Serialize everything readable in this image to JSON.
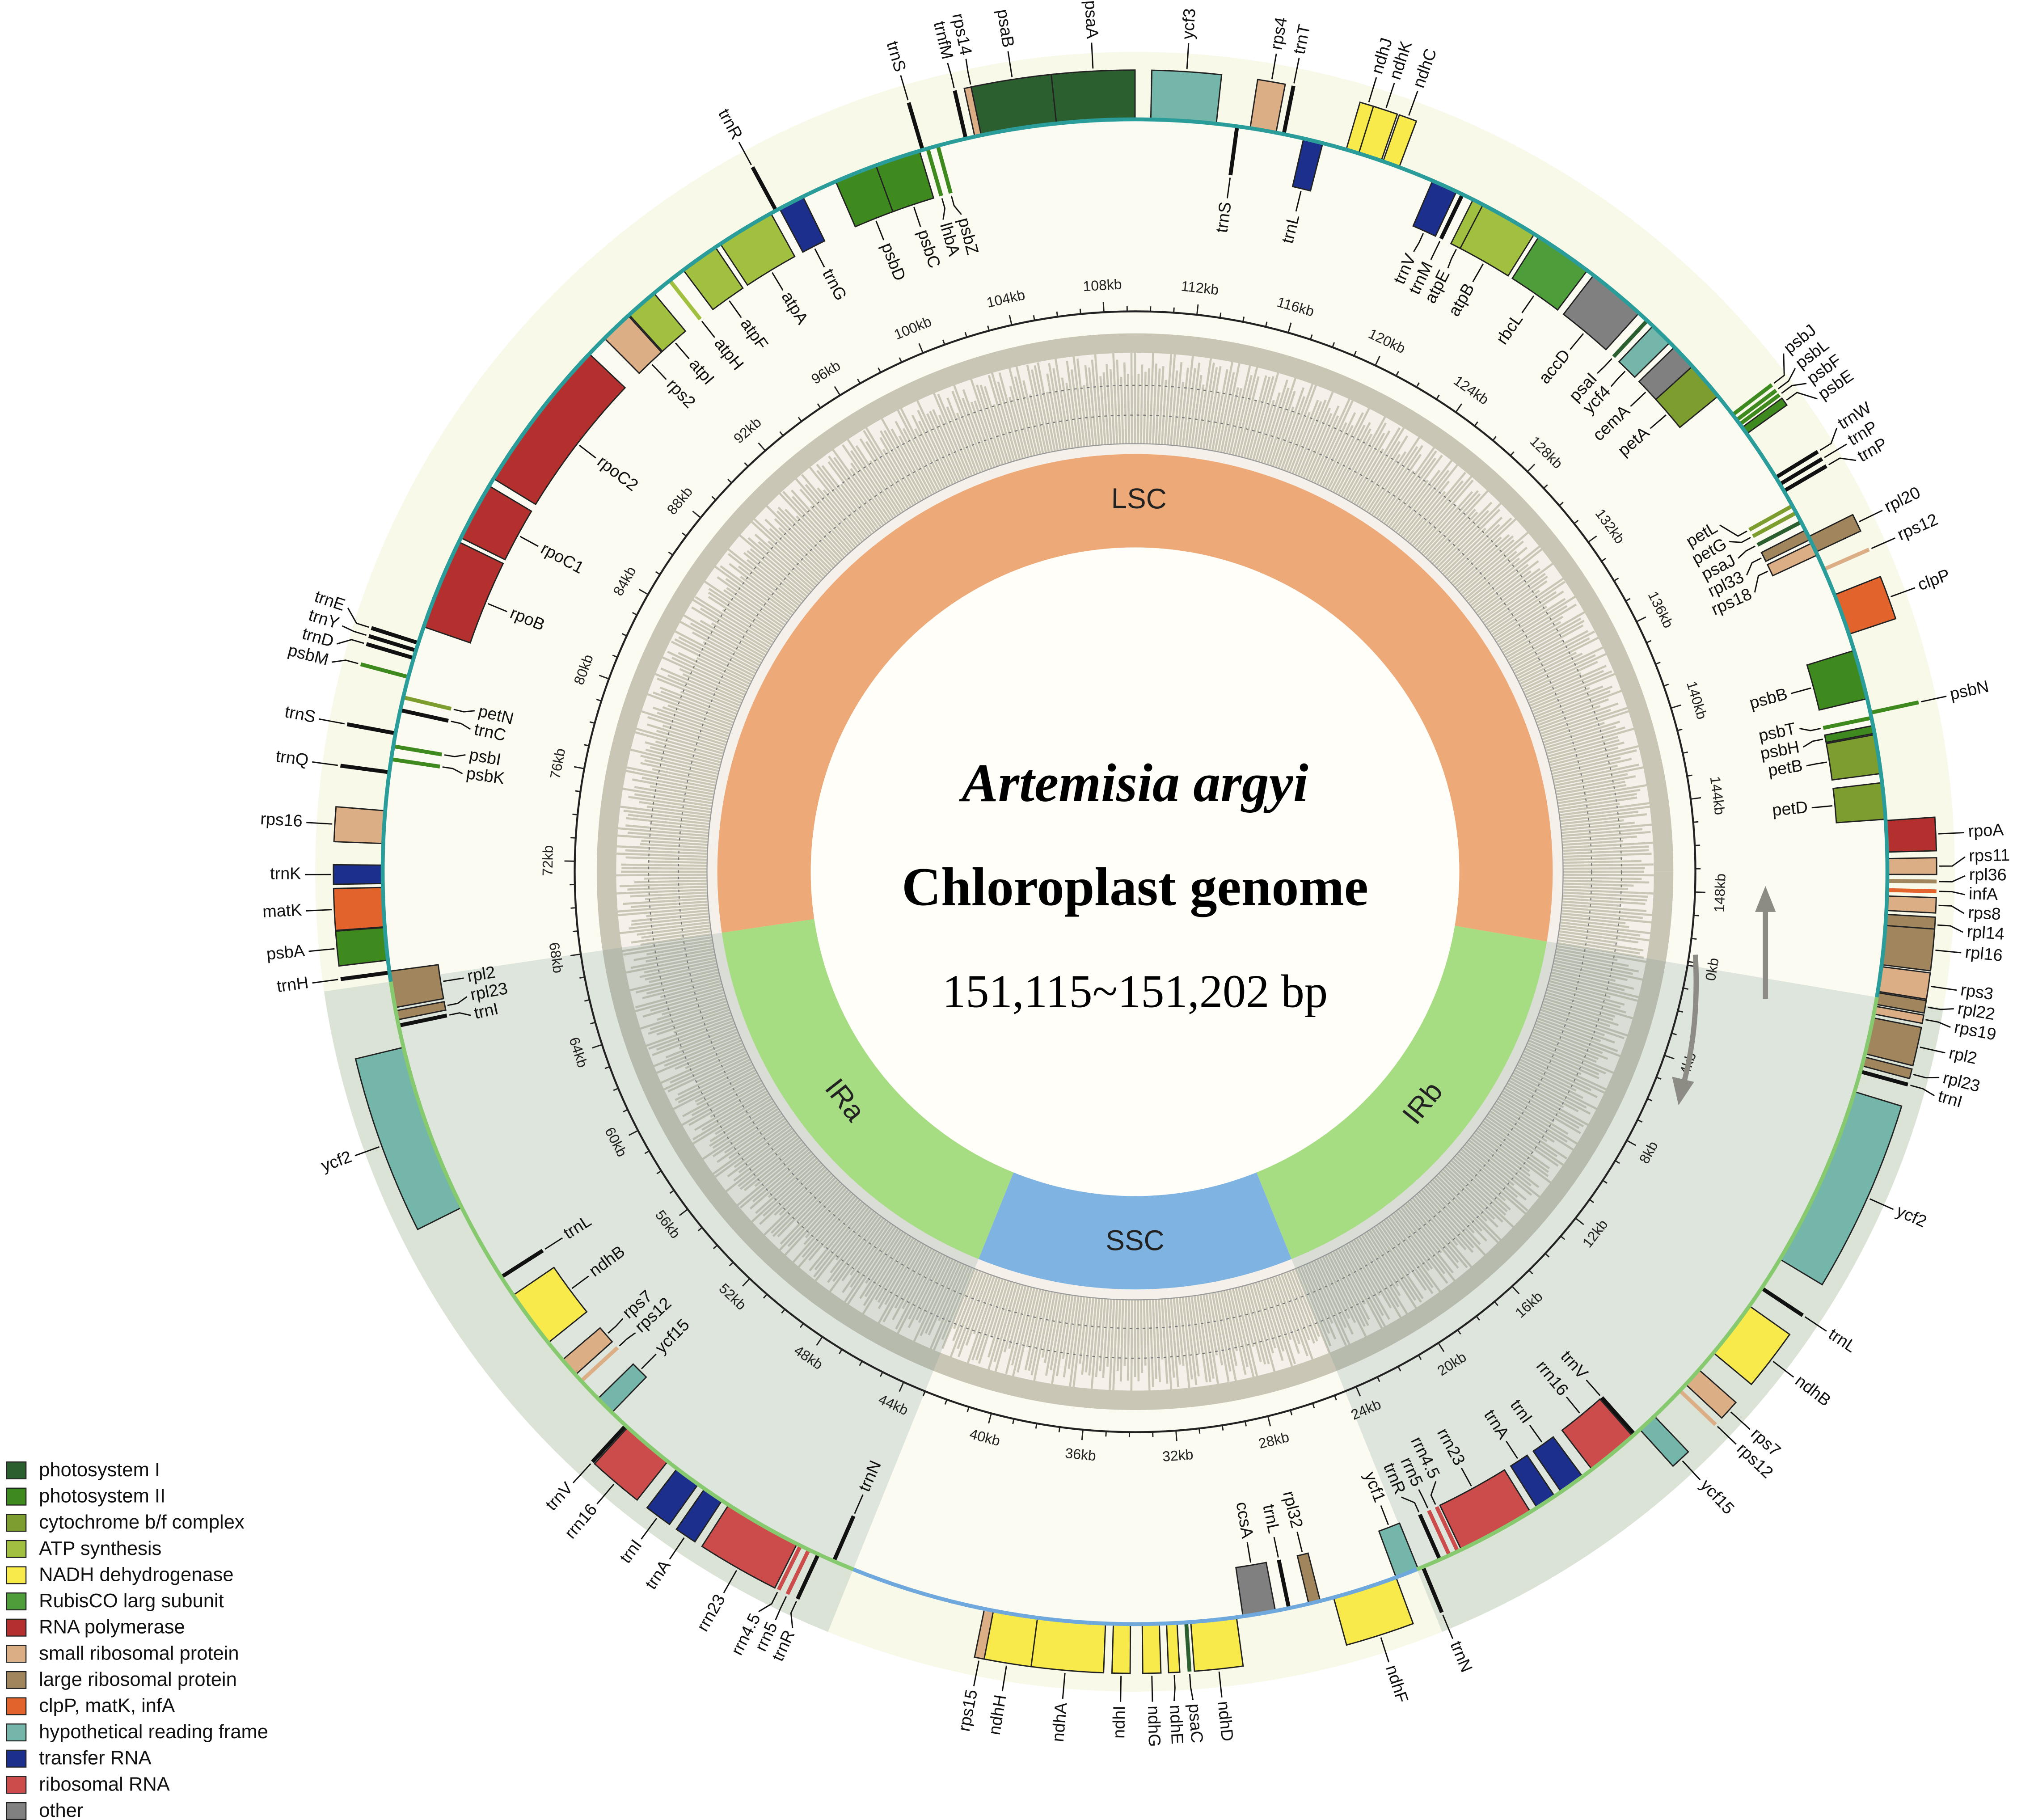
{
  "title": {
    "species": "Artemisia argyi",
    "subtitle": "Chloroplast genome",
    "size": "151,115~151,202 bp"
  },
  "regions": [
    "LSC",
    "IRb",
    "SSC",
    "IRa"
  ],
  "kb_ticks": [
    "0kb",
    "4kb",
    "8kb",
    "12kb",
    "16kb",
    "20kb",
    "24kb",
    "28kb",
    "32kb",
    "36kb",
    "40kb",
    "44kb",
    "48kb",
    "52kb",
    "56kb",
    "60kb",
    "64kb",
    "68kb",
    "72kb",
    "76kb",
    "80kb",
    "84kb",
    "88kb",
    "92kb",
    "96kb",
    "100kb",
    "104kb",
    "108kb",
    "112kb",
    "116kb",
    "120kb",
    "124kb",
    "128kb",
    "132kb",
    "136kb",
    "140kb",
    "144kb",
    "148kb"
  ],
  "genes": [
    "psbA",
    "trnH",
    "matK",
    "trnK",
    "rps16",
    "trnQ",
    "psbK",
    "psbI",
    "trnS",
    "trnC",
    "petN",
    "psbM",
    "trnD",
    "trnY",
    "trnE",
    "rpoB",
    "rpoC1",
    "rpoC2",
    "rps2",
    "atpI",
    "atpH",
    "atpF",
    "atpA",
    "trnR",
    "trnG",
    "psbD",
    "psbC",
    "lhbA",
    "psbZ",
    "trnS",
    "trnfM",
    "rps14",
    "psaB",
    "psaA",
    "ycf3",
    "trnS",
    "rps4",
    "trnT",
    "trnL",
    "ndhJ",
    "ndhK",
    "ndhC",
    "trnV",
    "trnM",
    "atpE",
    "atpB",
    "rbcL",
    "accD",
    "psaI",
    "ycf4",
    "cemA",
    "petA",
    "psbJ",
    "psbL",
    "psbF",
    "psbE",
    "trnW",
    "trnP",
    "trnP",
    "petL",
    "petG",
    "psaJ",
    "rpl33",
    "rps18",
    "rpl20",
    "rps12",
    "clpP",
    "psbB",
    "psbN",
    "psbT",
    "psbH",
    "petB",
    "petD",
    "rpoA",
    "rps11",
    "rpl36",
    "infA",
    "rps8",
    "rpl14",
    "rpl16",
    "rps3",
    "rpl22",
    "rps19",
    "rpl2",
    "rpl23",
    "trnI",
    "ycf2",
    "trnL",
    "ndhB",
    "rps7",
    "rps12",
    "ycf15",
    "trnV",
    "rrn16",
    "trnI",
    "trnA",
    "rrn23",
    "rrn4.5",
    "rrn5",
    "trnR",
    "trnN",
    "ycf1",
    "ndhF",
    "rpl32",
    "trnL",
    "ccsA",
    "ndhD",
    "psaC",
    "ndhE",
    "ndhG",
    "ndhI",
    "ndhA",
    "ndhH",
    "rps15",
    "trnN",
    "trnR",
    "rrn5",
    "rrn4.5",
    "rrn23",
    "trnA",
    "trnI",
    "rrn16",
    "trnV",
    "ycf15",
    "rps12",
    "rps7",
    "ndhB",
    "trnL",
    "ycf2",
    "trnI",
    "rpl23",
    "rpl2"
  ],
  "legend": [
    {
      "label": "photosystem I",
      "color": "#2b5f30"
    },
    {
      "label": "photosystem II",
      "color": "#3f8a1f"
    },
    {
      "label": "cytochrome b/f complex",
      "color": "#7d9e2f"
    },
    {
      "label": "ATP synthesis",
      "color": "#a2c03f"
    },
    {
      "label": "NADH dehydrogenase",
      "color": "#f7ea4a"
    },
    {
      "label": "RubisCO larg subunit",
      "color": "#4d9e3b"
    },
    {
      "label": "RNA polymerase",
      "color": "#b3302f"
    },
    {
      "label": "small ribosomal protein",
      "color": "#dcae86"
    },
    {
      "label": "large ribosomal protein",
      "color": "#a0855d"
    },
    {
      "label": "clpP, matK, infA",
      "color": "#e2632c"
    },
    {
      "label": "hypothetical reading frame",
      "color": "#74b6a9"
    },
    {
      "label": "transfer RNA",
      "color": "#1d2f8c"
    },
    {
      "label": "ribosomal RNA",
      "color": "#cc4c4c"
    },
    {
      "label": "other",
      "color": "#808080"
    }
  ]
}
